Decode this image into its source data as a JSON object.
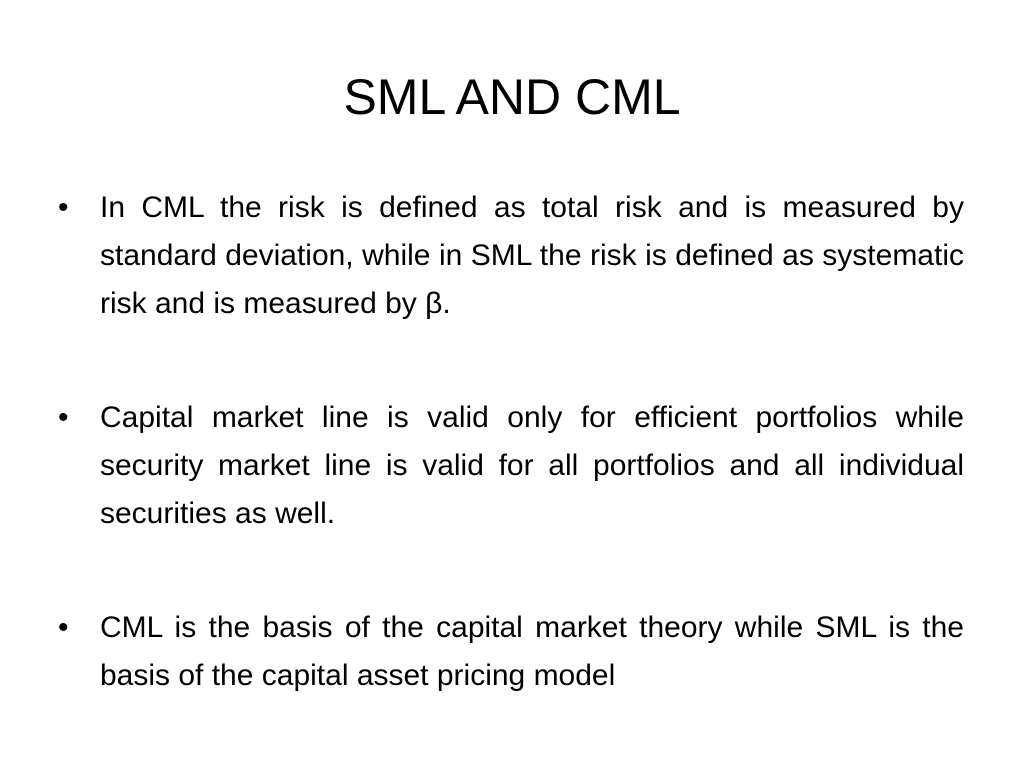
{
  "slide": {
    "title": "SML AND CML",
    "bullets": [
      {
        "marker": "•",
        "text": "In CML the risk is defined as total risk and is measured by standard deviation, while in SML the risk is defined as systematic risk and is measured by β."
      },
      {
        "marker": "•",
        "text": "Capital market line is valid only for efficient portfolios while security market line is valid for all portfolios and all individual securities as well."
      },
      {
        "marker": "•",
        "text": "CML is the basis of the capital market theory while SML is the basis of the capital asset pricing model"
      }
    ]
  }
}
